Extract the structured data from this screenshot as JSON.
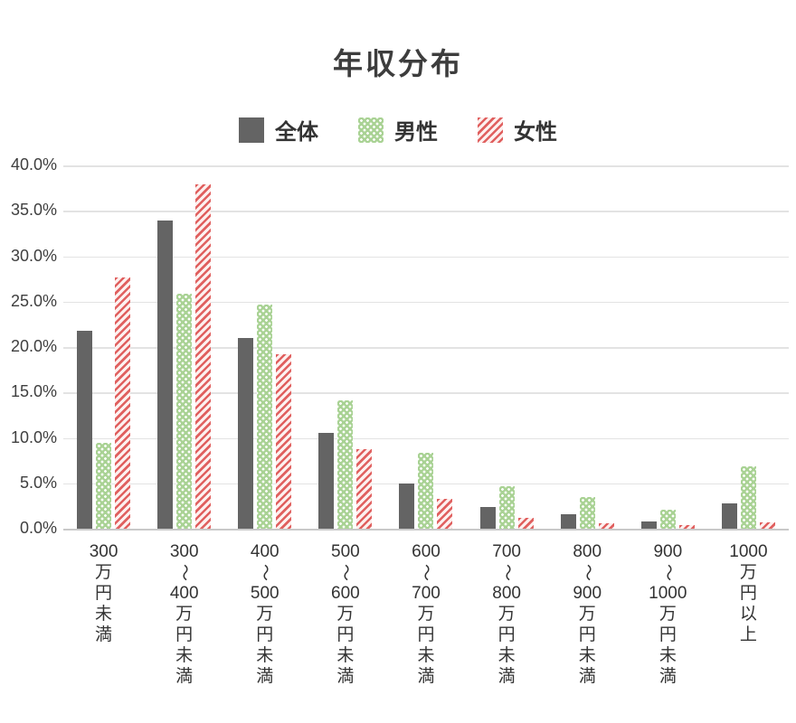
{
  "title": "年収分布",
  "colors": {
    "zentai": "#646464",
    "dansei_base": "#a9d294",
    "dansei_dot": "#ffffff",
    "josei_stripe": "#e0605f",
    "josei_bg": "#fdf1f0",
    "gridline": "#e3e3e3",
    "baseline": "#c9c9c9",
    "text": "#3d3d3d"
  },
  "chart_data": {
    "type": "bar",
    "title": "年収分布",
    "categories": [
      "300万円未満",
      "300〜400万円未満",
      "400〜500万円未満",
      "500〜600万円未満",
      "600〜700万円未満",
      "700〜800万円未満",
      "800〜900万円未満",
      "900〜1000万円未満",
      "1000万円以上"
    ],
    "category_segments": [
      [
        "300",
        "万",
        "円",
        "未",
        "満"
      ],
      [
        "300",
        "〜",
        "400",
        "万",
        "円",
        "未",
        "満"
      ],
      [
        "400",
        "〜",
        "500",
        "万",
        "円",
        "未",
        "満"
      ],
      [
        "500",
        "〜",
        "600",
        "万",
        "円",
        "未",
        "満"
      ],
      [
        "600",
        "〜",
        "700",
        "万",
        "円",
        "未",
        "満"
      ],
      [
        "700",
        "〜",
        "800",
        "万",
        "円",
        "未",
        "満"
      ],
      [
        "800",
        "〜",
        "900",
        "万",
        "円",
        "未",
        "満"
      ],
      [
        "900",
        "〜",
        "1000",
        "万",
        "円",
        "未",
        "満"
      ],
      [
        "1000",
        "万",
        "円",
        "以",
        "上"
      ]
    ],
    "series": [
      {
        "name": "全体",
        "key": "zentai",
        "pattern": "solid-gray",
        "values": [
          21.8,
          33.9,
          21.0,
          10.5,
          5.0,
          2.4,
          1.6,
          0.8,
          2.8
        ]
      },
      {
        "name": "男性",
        "key": "dansei",
        "pattern": "green-white-dots",
        "values": [
          9.5,
          25.9,
          24.7,
          14.1,
          8.4,
          4.7,
          3.5,
          2.1,
          6.9
        ]
      },
      {
        "name": "女性",
        "key": "josei",
        "pattern": "red-diagonal-stripes",
        "values": [
          27.7,
          37.9,
          19.2,
          8.8,
          3.3,
          1.2,
          0.6,
          0.4,
          0.7
        ]
      }
    ],
    "xlabel": "",
    "ylabel": "",
    "y_axis": {
      "min": 0,
      "max": 40,
      "step": 5,
      "tick_labels": [
        "40.0%",
        "35.0%",
        "30.0%",
        "25.0%",
        "20.0%",
        "15.0%",
        "10.0%",
        "5.0%",
        "0.0%"
      ]
    },
    "grid": true,
    "legend_position": "top-center"
  }
}
